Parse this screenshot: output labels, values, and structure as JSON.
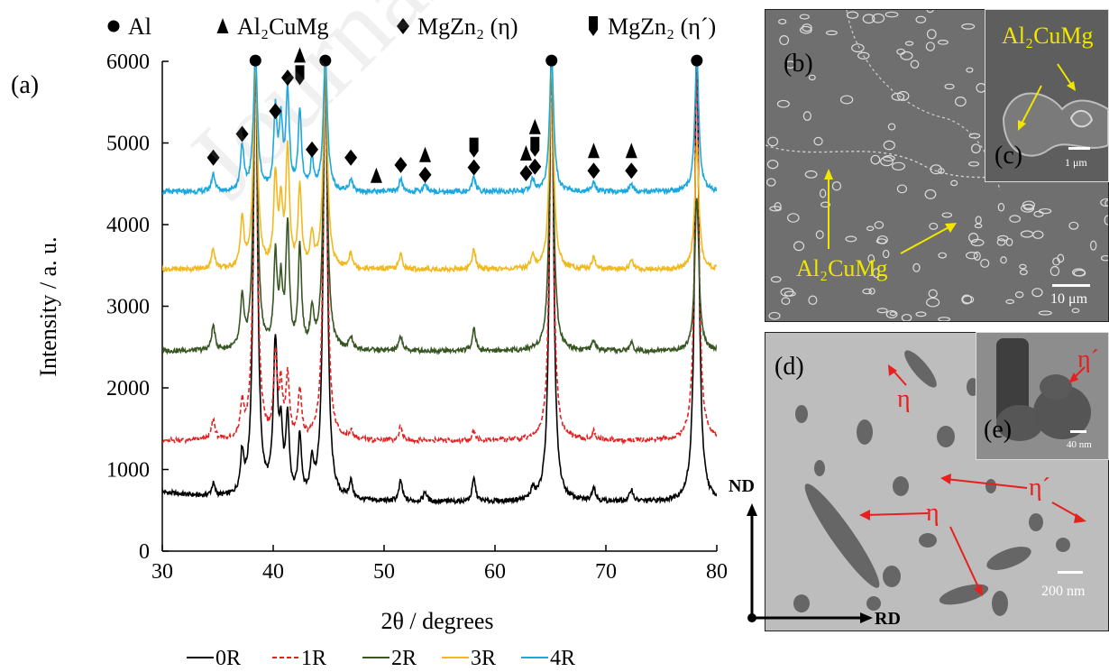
{
  "chart_data": {
    "type": "line",
    "panel_label": "(a)",
    "xlabel": "2θ / degrees",
    "ylabel": "Intensity / a. u.",
    "xlim": [
      30,
      80
    ],
    "ylim": [
      0,
      6000
    ],
    "x_ticks": [
      "30",
      "40",
      "50",
      "60",
      "70",
      "80"
    ],
    "y_ticks": [
      "0",
      "1000",
      "2000",
      "3000",
      "4000",
      "5000",
      "6000"
    ],
    "grid": false,
    "legend_position": "bottom",
    "phase_legend": [
      {
        "symbol": "circle",
        "label": "Al"
      },
      {
        "symbol": "triangle",
        "label": "Al₂CuMg"
      },
      {
        "symbol": "diamond",
        "label": "MgZn₂ (η)"
      },
      {
        "symbol": "tag",
        "label": "MgZn₂ (η´)"
      }
    ],
    "series": [
      {
        "name": "0R",
        "color": "#000000",
        "dash": "solid",
        "baseline": 600,
        "peaks": [
          [
            34.6,
            150
          ],
          [
            37.2,
            470
          ],
          [
            38.4,
            5600
          ],
          [
            40.2,
            1850
          ],
          [
            40.7,
            700
          ],
          [
            41.3,
            950
          ],
          [
            42.4,
            750
          ],
          [
            43.5,
            400
          ],
          [
            44.7,
            5600
          ],
          [
            47.0,
            220
          ],
          [
            51.5,
            250
          ],
          [
            53.7,
            120
          ],
          [
            58.1,
            280
          ],
          [
            63.4,
            120
          ],
          [
            65.1,
            5700
          ],
          [
            68.9,
            180
          ],
          [
            72.3,
            150
          ],
          [
            78.2,
            5700
          ]
        ]
      },
      {
        "name": "1R",
        "color": "#e5201f",
        "dash": "dashed",
        "baseline": 1350,
        "peaks": [
          [
            34.6,
            250
          ],
          [
            37.2,
            400
          ],
          [
            38.4,
            4650
          ],
          [
            40.2,
            1000
          ],
          [
            40.7,
            600
          ],
          [
            41.3,
            750
          ],
          [
            42.4,
            600
          ],
          [
            44.7,
            4650
          ],
          [
            47.0,
            100
          ],
          [
            51.5,
            180
          ],
          [
            58.1,
            120
          ],
          [
            65.1,
            4650
          ],
          [
            68.9,
            100
          ],
          [
            78.2,
            4650
          ]
        ]
      },
      {
        "name": "2R",
        "color": "#385723",
        "dash": "solid",
        "baseline": 2450,
        "peaks": [
          [
            34.6,
            300
          ],
          [
            37.2,
            600
          ],
          [
            38.4,
            3600
          ],
          [
            40.2,
            1100
          ],
          [
            40.7,
            750
          ],
          [
            41.3,
            1500
          ],
          [
            42.4,
            1250
          ],
          [
            43.5,
            450
          ],
          [
            44.7,
            3600
          ],
          [
            47.0,
            150
          ],
          [
            51.5,
            180
          ],
          [
            58.1,
            280
          ],
          [
            65.1,
            3600
          ],
          [
            68.9,
            120
          ],
          [
            72.3,
            100
          ],
          [
            78.2,
            1900
          ]
        ]
      },
      {
        "name": "3R",
        "color": "#f2b91e",
        "dash": "solid",
        "baseline": 3450,
        "peaks": [
          [
            34.6,
            250
          ],
          [
            37.2,
            600
          ],
          [
            38.4,
            2600
          ],
          [
            40.2,
            1100
          ],
          [
            40.7,
            750
          ],
          [
            41.3,
            1450
          ],
          [
            42.4,
            1000
          ],
          [
            43.5,
            400
          ],
          [
            44.7,
            2600
          ],
          [
            47.0,
            200
          ],
          [
            51.5,
            180
          ],
          [
            58.1,
            250
          ],
          [
            63.4,
            180
          ],
          [
            65.1,
            2600
          ],
          [
            68.9,
            150
          ],
          [
            72.3,
            120
          ],
          [
            78.2,
            1550
          ]
        ]
      },
      {
        "name": "4R",
        "color": "#1aa8e0",
        "dash": "solid",
        "baseline": 4400,
        "peaks": [
          [
            34.6,
            220
          ],
          [
            37.2,
            550
          ],
          [
            38.4,
            1650
          ],
          [
            40.2,
            950
          ],
          [
            40.7,
            800
          ],
          [
            41.3,
            1200
          ],
          [
            42.4,
            950
          ],
          [
            43.5,
            350
          ],
          [
            44.7,
            1650
          ],
          [
            47.0,
            150
          ],
          [
            51.5,
            150
          ],
          [
            53.7,
            100
          ],
          [
            58.1,
            180
          ],
          [
            63.4,
            150
          ],
          [
            65.1,
            1650
          ],
          [
            68.9,
            120
          ],
          [
            72.3,
            100
          ],
          [
            78.2,
            1650
          ]
        ]
      }
    ],
    "phase_markers": [
      {
        "x": 34.6,
        "y": 4820,
        "symbols": [
          "diamond"
        ]
      },
      {
        "x": 37.2,
        "y": 5110,
        "symbols": [
          "diamond"
        ]
      },
      {
        "x": 38.4,
        "y": 6010,
        "symbols": [
          "circle"
        ]
      },
      {
        "x": 40.2,
        "y": 5390,
        "symbols": [
          "diamond"
        ]
      },
      {
        "x": 41.3,
        "y": 5800,
        "symbols": [
          "diamond"
        ]
      },
      {
        "x": 42.4,
        "y": 5830,
        "symbols": [
          "tag",
          "triangle"
        ]
      },
      {
        "x": 43.5,
        "y": 4920,
        "symbols": [
          "diamond"
        ]
      },
      {
        "x": 44.7,
        "y": 6010,
        "symbols": [
          "circle"
        ]
      },
      {
        "x": 47.0,
        "y": 4820,
        "symbols": [
          "diamond"
        ]
      },
      {
        "x": 49.3,
        "y": 4600,
        "symbols": [
          "triangle"
        ]
      },
      {
        "x": 51.5,
        "y": 4730,
        "symbols": [
          "diamond"
        ]
      },
      {
        "x": 53.7,
        "y": 4610,
        "symbols": [
          "diamond",
          "triangle"
        ]
      },
      {
        "x": 58.1,
        "y": 4700,
        "symbols": [
          "diamond",
          "tag"
        ]
      },
      {
        "x": 62.8,
        "y": 4630,
        "symbols": [
          "diamond",
          "triangle"
        ]
      },
      {
        "x": 63.6,
        "y": 4710,
        "symbols": [
          "diamond",
          "tag",
          "triangle"
        ]
      },
      {
        "x": 65.1,
        "y": 6010,
        "symbols": [
          "circle"
        ]
      },
      {
        "x": 68.9,
        "y": 4660,
        "symbols": [
          "diamond",
          "triangle"
        ]
      },
      {
        "x": 72.3,
        "y": 4660,
        "symbols": [
          "diamond",
          "triangle"
        ]
      },
      {
        "x": 78.2,
        "y": 6010,
        "symbols": [
          "circle"
        ]
      }
    ]
  },
  "micrographs": {
    "b": {
      "letter": "(b)",
      "phase_label": "Al₂CuMg",
      "scale": "10 μm"
    },
    "c": {
      "letter": "(c)",
      "phase_label": "Al₂CuMg",
      "scale": "1 μm"
    },
    "d": {
      "letter": "(d)",
      "eta": "η",
      "eta_prime": "η´",
      "scale": "200 nm",
      "dir_nd": "ND",
      "dir_rd": "RD"
    },
    "e": {
      "letter": "(e)",
      "eta_prime": "η´",
      "scale": "40 nm"
    }
  },
  "watermark": "Journal Pre-proof"
}
